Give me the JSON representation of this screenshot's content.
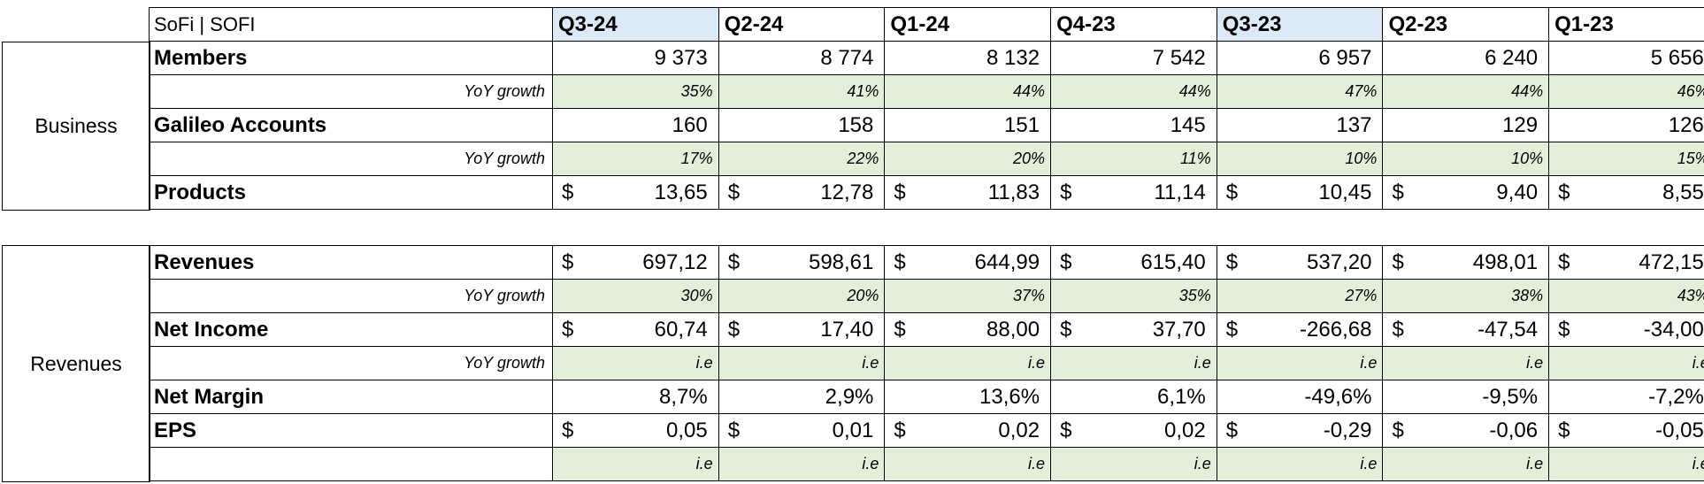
{
  "company_label": "SoFi | SOFI",
  "sections": {
    "business": "Business",
    "revenues": "Revenues"
  },
  "quarters": [
    "Q3-24",
    "Q2-24",
    "Q1-24",
    "Q4-23",
    "Q3-23",
    "Q2-23",
    "Q1-23"
  ],
  "highlighted_quarters": [
    "Q3-24",
    "Q3-23"
  ],
  "business": {
    "members": {
      "label": "Members",
      "values": [
        "9 373",
        "8 774",
        "8 132",
        "7 542",
        "6 957",
        "6 240",
        "5 656"
      ]
    },
    "members_growth": {
      "label": "YoY growth",
      "values": [
        "35%",
        "41%",
        "44%",
        "44%",
        "47%",
        "44%",
        "46%"
      ]
    },
    "galileo": {
      "label": "Galileo Accounts",
      "values": [
        "160",
        "158",
        "151",
        "145",
        "137",
        "129",
        "126"
      ]
    },
    "galileo_growth": {
      "label": "YoY growth",
      "values": [
        "17%",
        "22%",
        "20%",
        "11%",
        "10%",
        "10%",
        "15%"
      ]
    },
    "products": {
      "label": "Products",
      "currency": "$",
      "values": [
        "13,65",
        "12,78",
        "11,83",
        "11,14",
        "10,45",
        "9,40",
        "8,55"
      ]
    }
  },
  "revenues": {
    "revenues": {
      "label": "Revenues",
      "currency": "$",
      "values": [
        "697,12",
        "598,61",
        "644,99",
        "615,40",
        "537,20",
        "498,01",
        "472,15"
      ]
    },
    "revenues_growth": {
      "label": "YoY growth",
      "values": [
        "30%",
        "20%",
        "37%",
        "35%",
        "27%",
        "38%",
        "43%"
      ]
    },
    "net_income": {
      "label": "Net Income",
      "currency": "$",
      "values": [
        "60,74",
        "17,40",
        "88,00",
        "37,70",
        "-266,68",
        "-47,54",
        "-34,00"
      ]
    },
    "net_income_growth": {
      "label": "YoY growth",
      "values": [
        "i.e",
        "i.e",
        "i.e",
        "i.e",
        "i.e",
        "i.e",
        "i.e"
      ]
    },
    "net_margin": {
      "label": "Net Margin",
      "values": [
        "8,7%",
        "2,9%",
        "13,6%",
        "6,1%",
        "-49,6%",
        "-9,5%",
        "-7,2%"
      ]
    },
    "eps": {
      "label": "EPS",
      "currency": "$",
      "values": [
        "0,05",
        "0,01",
        "0,02",
        "0,02",
        "-0,29",
        "-0,06",
        "-0,05"
      ]
    },
    "eps_growth": {
      "label": "",
      "values": [
        "i.e",
        "i.e",
        "i.e",
        "i.e",
        "i.e",
        "i.e",
        "i.e"
      ]
    }
  },
  "colors": {
    "header_highlight": "#dce9f6",
    "growth_fill": "#e2efd9"
  }
}
